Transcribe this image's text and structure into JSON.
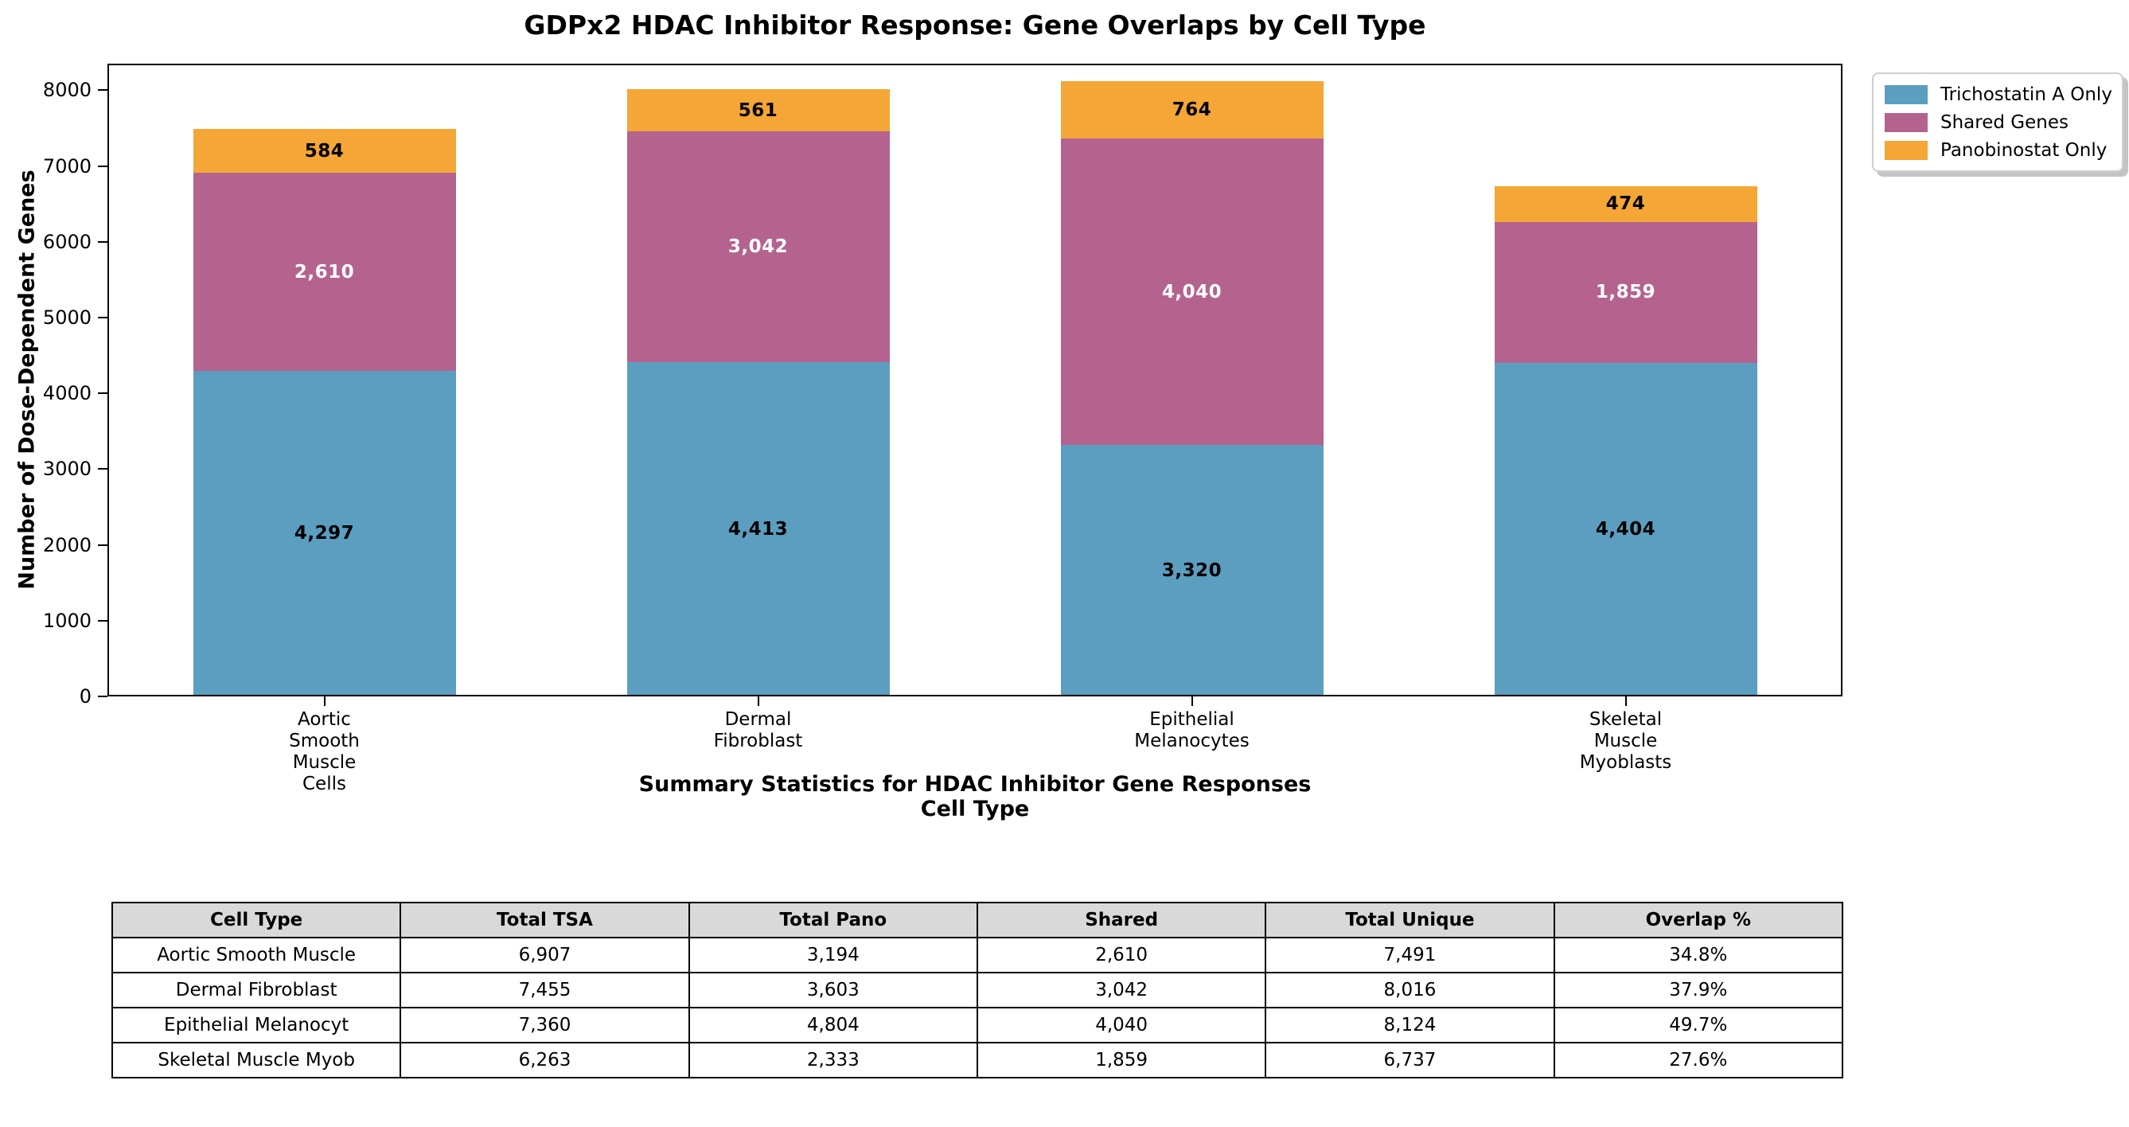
{
  "chart_data": {
    "type": "bar",
    "stacked": true,
    "title": "GDPx2 HDAC Inhibitor Response: Gene Overlaps by Cell Type",
    "categories": [
      [
        "Aortic",
        "Smooth",
        "Muscle",
        "Cells"
      ],
      [
        "Dermal",
        "Fibroblast"
      ],
      [
        "Epithelial",
        "Melanocytes"
      ],
      [
        "Skeletal",
        "Muscle",
        "Myoblasts"
      ]
    ],
    "series": [
      {
        "name": "Trichostatin A Only",
        "color": "#5B9EC0",
        "text_color": "#000000",
        "values": [
          4297,
          4413,
          3320,
          4404
        ]
      },
      {
        "name": "Shared Genes",
        "color": "#B4638F",
        "text_color": "#FFFFFF",
        "values": [
          2610,
          3042,
          4040,
          1859
        ]
      },
      {
        "name": "Panobinostat Only",
        "color": "#F4A636",
        "text_color": "#000000",
        "values": [
          584,
          561,
          764,
          474
        ]
      }
    ],
    "bar_totals": [
      7491,
      8016,
      8124,
      6737
    ],
    "xlabel": "Cell Type",
    "ylabel": "Number of Dose-Dependent Genes",
    "ylim": [
      0,
      8350
    ],
    "yticks": [
      0,
      1000,
      2000,
      3000,
      4000,
      5000,
      6000,
      7000,
      8000
    ],
    "grid": false,
    "legend_position": "upper-right-outside"
  },
  "table_section": {
    "title": "Summary Statistics for HDAC Inhibitor Gene Responses",
    "header_bg": "#D9D9D9",
    "headers": [
      "Cell Type",
      "Total TSA",
      "Total Pano",
      "Shared",
      "Total Unique",
      "Overlap %"
    ],
    "rows": [
      [
        "Aortic Smooth Muscle",
        "6,907",
        "3,194",
        "2,610",
        "7,491",
        "34.8%"
      ],
      [
        "Dermal Fibroblast",
        "7,455",
        "3,603",
        "3,042",
        "8,016",
        "37.9%"
      ],
      [
        "Epithelial Melanocyt",
        "7,360",
        "4,804",
        "4,040",
        "8,124",
        "49.7%"
      ],
      [
        "Skeletal Muscle Myob",
        "6,263",
        "2,333",
        "1,859",
        "6,737",
        "27.6%"
      ]
    ]
  }
}
